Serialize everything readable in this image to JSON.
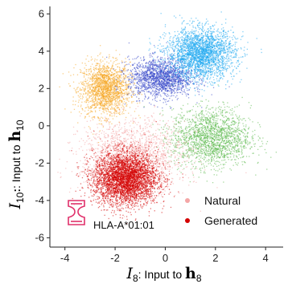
{
  "chart_data": {
    "type": "scatter",
    "xlim": [
      -4.6,
      4.7
    ],
    "ylim": [
      -6.5,
      6.4
    ],
    "x_ticks": [
      -4,
      -2,
      0,
      2,
      4
    ],
    "y_ticks": [
      6,
      4,
      2,
      0,
      -2,
      -4,
      -6
    ],
    "x_tick_labels": [
      "-4",
      "-2",
      "0",
      "2",
      "4"
    ],
    "y_tick_labels": [
      "6",
      "4",
      "2",
      "0",
      "-2",
      "-4",
      "-6"
    ],
    "grid": false,
    "xlabel": {
      "symbol": "I",
      "subscript": "8",
      "text": ": Input to ",
      "bold": "h",
      "bold_subscript": "8"
    },
    "ylabel": {
      "symbol": "I",
      "subscript": "10",
      "text": ": Input to ",
      "bold": "h",
      "bold_subscript": "10"
    },
    "legend": {
      "placement": "bottom-right",
      "entries": [
        {
          "label": "Natural",
          "color": "#f4a6a6"
        },
        {
          "label": "Generated",
          "color": "#d40000"
        }
      ]
    },
    "annotation": {
      "text": "HLA-A*01:01",
      "icon": "mhc-molecule-icon",
      "icon_color": "#e0306a"
    },
    "clusters": [
      {
        "name": "orange",
        "center": [
          -2.4,
          2.0
        ],
        "spread": [
          0.65,
          0.95
        ],
        "color": "#f6a623",
        "count": 1800
      },
      {
        "name": "blue",
        "center": [
          -0.2,
          2.6
        ],
        "spread": [
          0.85,
          0.7
        ],
        "color": "#3546c8",
        "count": 1700
      },
      {
        "name": "cyan",
        "center": [
          1.4,
          3.9
        ],
        "spread": [
          0.9,
          0.9
        ],
        "color": "#1ea7f0",
        "count": 2600
      },
      {
        "name": "green",
        "center": [
          1.8,
          -0.6
        ],
        "spread": [
          1.05,
          1.05
        ],
        "color": "#5ab84a",
        "count": 1800
      },
      {
        "name": "pink",
        "center": [
          -1.3,
          -1.6
        ],
        "spread": [
          1.4,
          1.3
        ],
        "color": "#f4a6a6",
        "count": 1700
      },
      {
        "name": "red",
        "center": [
          -1.6,
          -2.8
        ],
        "spread": [
          0.85,
          0.95
        ],
        "color": "#d40000",
        "count": 3800
      }
    ]
  }
}
